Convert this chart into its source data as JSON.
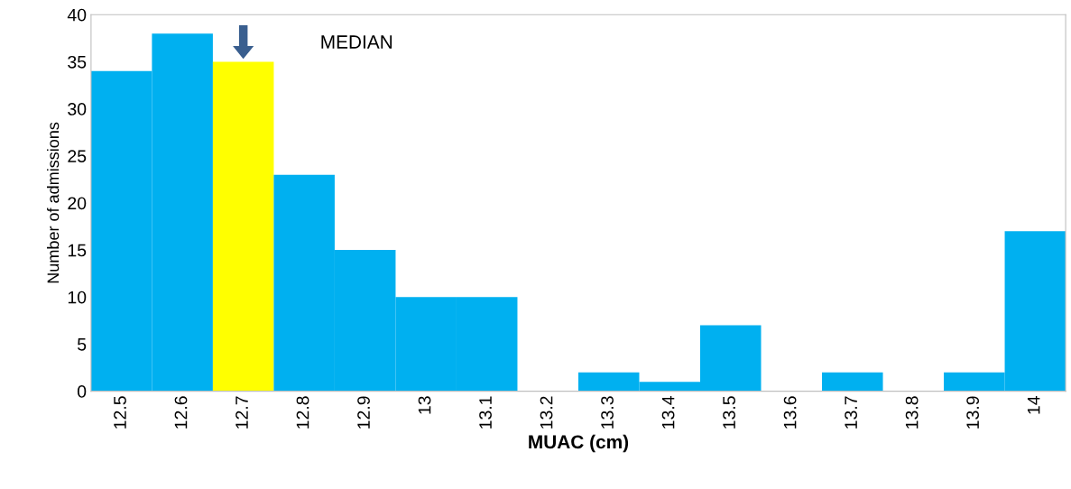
{
  "chart_data": {
    "type": "bar",
    "xlabel": "MUAC (cm)",
    "ylabel": "Number of admissions",
    "categories": [
      "12.5",
      "12.6",
      "12.7",
      "12.8",
      "12.9",
      "13",
      "13.1",
      "13.2",
      "13.3",
      "13.4",
      "13.5",
      "13.6",
      "13.7",
      "13.8",
      "13.9",
      "14"
    ],
    "values": [
      34,
      38,
      35,
      23,
      15,
      10,
      10,
      0,
      2,
      1,
      7,
      0,
      2,
      0,
      2,
      17
    ],
    "colors": [
      "#00b0f0",
      "#00b0f0",
      "#ffff00",
      "#00b0f0",
      "#00b0f0",
      "#00b0f0",
      "#00b0f0",
      "#00b0f0",
      "#00b0f0",
      "#00b0f0",
      "#00b0f0",
      "#00b0f0",
      "#00b0f0",
      "#00b0f0",
      "#00b0f0",
      "#00b0f0"
    ],
    "ylim": [
      0,
      40
    ],
    "yticks": [
      0,
      5,
      10,
      15,
      20,
      25,
      30,
      35,
      40
    ],
    "grid": false,
    "annotations": [
      "MEDIAN"
    ]
  }
}
